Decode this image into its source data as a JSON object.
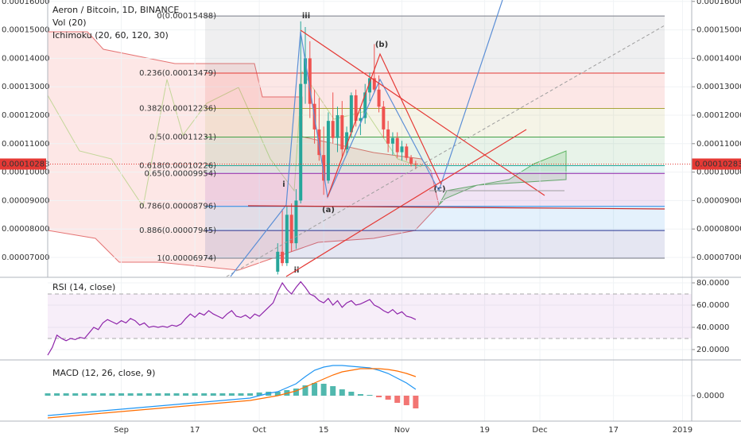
{
  "chart_data": [
    {
      "type": "candlestick",
      "title": "Aeron / Bitcoin, 1D, BINANCE",
      "indicators": [
        "Vol (20)",
        "Ichimoku (20, 60, 120, 30)"
      ],
      "x": [
        50,
        51,
        52,
        53,
        54,
        55,
        56,
        57,
        58,
        59,
        60,
        61,
        62,
        63,
        64,
        65,
        66,
        67,
        68,
        69,
        70,
        71,
        72,
        73,
        74,
        75,
        76,
        77,
        78,
        79,
        80
      ],
      "open": [
        6.5e-05,
        7.2e-05,
        6.8e-05,
        8.5e-05,
        7.5e-05,
        9e-05,
        0.000131,
        0.00014,
        0.000124,
        0.000115,
        0.000106,
        9.7e-05,
        0.000118,
        0.000112,
        0.00012,
        0.000108,
        0.000114,
        0.000127,
        0.000118,
        0.000119,
        0.000128,
        0.000133,
        0.000129,
        0.000123,
        0.000115,
        0.00011,
        0.000112,
        0.000107,
        0.000109,
        0.000105,
        0.000103
      ],
      "high": [
        7.5e-05,
        8.7e-05,
        8.8e-05,
        8.9e-05,
        9.4e-05,
        0.000153,
        0.000151,
        0.000146,
        0.000129,
        0.000126,
        0.000116,
        0.000121,
        0.000128,
        0.000123,
        0.000125,
        0.000116,
        0.000128,
        0.000129,
        0.000123,
        0.000131,
        0.000135,
        0.000145,
        0.000134,
        0.000125,
        0.000118,
        0.000114,
        0.000114,
        0.000111,
        0.00011,
        0.000106,
        0.000104
      ],
      "low": [
        6.4e-05,
        6.7e-05,
        6.7e-05,
        7.2e-05,
        7.3e-05,
        8.9e-05,
        0.000124,
        0.000119,
        0.00011,
        0.000104,
        9.2e-05,
        9.6e-05,
        0.00011,
        0.000107,
        0.000105,
        0.000106,
        0.000112,
        0.000116,
        0.000113,
        0.000117,
        0.000125,
        0.000128,
        0.000121,
        0.000112,
        0.000107,
        0.000106,
        0.000105,
        0.000104,
        0.000104,
        0.000102,
        0.000101
      ],
      "close": [
        7.2e-05,
        6.8e-05,
        8.5e-05,
        7.5e-05,
        9e-05,
        0.000131,
        0.00014,
        0.000124,
        0.000115,
        0.000106,
        9.7e-05,
        0.000118,
        0.000112,
        0.00012,
        0.000108,
        0.000114,
        0.000127,
        0.000118,
        0.000119,
        0.000128,
        0.000133,
        0.000129,
        0.000123,
        0.000115,
        0.00011,
        0.000112,
        0.000107,
        0.000109,
        0.000105,
        0.000103,
        0.00010283
      ],
      "up_color": "#26a69a",
      "down_color": "#ef5350",
      "xlim": [
        0,
        140
      ],
      "ylim": [
        6.33e-05,
        0.0001605
      ],
      "yticks": [
        {
          "value": 0.00016,
          "label": "0.00016000"
        },
        {
          "value": 0.00015,
          "label": "0.00015000"
        },
        {
          "value": 0.00014,
          "label": "0.00014000"
        },
        {
          "value": 0.00013,
          "label": "0.00013000"
        },
        {
          "value": 0.00012,
          "label": "0.00012000"
        },
        {
          "value": 0.00011,
          "label": "0.00011000"
        },
        {
          "value": 0.0001,
          "label": "0.00010000"
        },
        {
          "value": 9e-05,
          "label": "0.00009000"
        },
        {
          "value": 8e-05,
          "label": "0.00008000"
        },
        {
          "value": 7e-05,
          "label": "0.00007000"
        }
      ],
      "grid": true,
      "last_price": 0.00010283,
      "last_price_color": "#e53935",
      "fib_levels": [
        {
          "label": "0(0.00015488)",
          "value": 0.00015488,
          "color": "#787b86"
        },
        {
          "label": "0.236(0.00013479)",
          "value": 0.00013479,
          "color": "#e53935"
        },
        {
          "label": "0.382(0.00012236)",
          "value": 0.00012236,
          "color": "#a9a33a"
        },
        {
          "label": "0.5(0.00011231)",
          "value": 0.00011231,
          "color": "#43a047"
        },
        {
          "label": "0.618(0.00010226)",
          "value": 0.00010226,
          "color": "#26a69a"
        },
        {
          "label": "0.65(0.00009954)",
          "value": 9.954e-05,
          "color": "#8e24aa"
        },
        {
          "label": "0.786(0.00008796)",
          "value": 8.796e-05,
          "color": "#1e88e5"
        },
        {
          "label": "0.886(0.00007945)",
          "value": 7.945e-05,
          "color": "#283593"
        },
        {
          "label": "1(0.00006974)",
          "value": 6.974e-05,
          "color": "#787b86"
        }
      ],
      "annotations": [
        {
          "text": "iii",
          "color": "#3949ab"
        },
        {
          "text": "i",
          "color": "#3949ab"
        },
        {
          "text": "ii",
          "color": "#3949ab"
        },
        {
          "text": "(a)",
          "color": "#b71c1c"
        },
        {
          "text": "(b)",
          "color": "#b71c1c"
        },
        {
          "text": "(c)",
          "color": "#b71c1c"
        }
      ]
    },
    {
      "type": "line",
      "title": "RSI (14, close)",
      "x": [
        0,
        1,
        2,
        3,
        4,
        5,
        6,
        7,
        8,
        9,
        10,
        11,
        12,
        13,
        14,
        15,
        16,
        17,
        18,
        19,
        20,
        21,
        22,
        23,
        24,
        25,
        26,
        27,
        28,
        29,
        30,
        31,
        32,
        33,
        34,
        35,
        36,
        37,
        38,
        39,
        40,
        41,
        42,
        43,
        44,
        45,
        46,
        47,
        48,
        49,
        50,
        51,
        52,
        53,
        54,
        55,
        56,
        57,
        58,
        59,
        60,
        61,
        62,
        63,
        64,
        65,
        66,
        67,
        68,
        69,
        70,
        71,
        72,
        73,
        74,
        75,
        76,
        77,
        78,
        79,
        80
      ],
      "values": [
        15,
        22,
        33,
        30,
        28,
        30,
        29,
        31,
        30,
        35,
        40,
        38,
        44,
        47,
        45,
        43,
        46,
        44,
        48,
        46,
        42,
        44,
        40,
        41,
        40,
        41,
        40,
        42,
        41,
        43,
        48,
        52,
        49,
        53,
        51,
        55,
        52,
        50,
        48,
        52,
        55,
        50,
        49,
        51,
        48,
        52,
        50,
        54,
        58,
        62,
        72,
        80,
        74,
        70,
        76,
        81,
        76,
        70,
        68,
        64,
        62,
        66,
        60,
        64,
        58,
        62,
        64,
        60,
        61,
        63,
        65,
        60,
        58,
        55,
        53,
        56,
        52,
        54,
        50,
        49,
        47
      ],
      "color": "#8e24aa",
      "band": [
        30,
        70
      ],
      "band_color": "#9c27b0",
      "xlim": [
        0,
        140
      ],
      "ylim": [
        11.4,
        84.3
      ],
      "yticks": [
        {
          "value": 80,
          "label": "80.0000"
        },
        {
          "value": 60,
          "label": "60.0000"
        },
        {
          "value": 40,
          "label": "40.0000"
        },
        {
          "value": 20,
          "label": "20.0000"
        }
      ]
    },
    {
      "type": "macd",
      "title": "MACD (12, 26, close, 9)",
      "x": [
        0,
        2,
        4,
        6,
        8,
        10,
        12,
        14,
        16,
        18,
        20,
        22,
        24,
        26,
        28,
        30,
        32,
        34,
        36,
        38,
        40,
        42,
        44,
        46,
        48,
        50,
        52,
        54,
        56,
        58,
        60,
        62,
        64,
        66,
        68,
        70,
        72,
        74,
        76,
        78,
        80
      ],
      "series": [
        {
          "color": "#2196f3",
          "values": [
            -2.5e-06,
            -2.4e-06,
            -2.3e-06,
            -2.2e-06,
            -2.1e-06,
            -2e-06,
            -1.9e-06,
            -1.8e-06,
            -1.7e-06,
            -1.6e-06,
            -1.5e-06,
            -1.4e-06,
            -1.3e-06,
            -1.2e-06,
            -1.1e-06,
            -1e-06,
            -9e-07,
            -8e-07,
            -7e-07,
            -6e-07,
            -5e-07,
            -4e-07,
            -3e-07,
            0,
            3e-07,
            5e-07,
            1e-06,
            1.5e-06,
            2.4e-06,
            3.2e-06,
            3.6e-06,
            3.8e-06,
            3.8e-06,
            3.7e-06,
            3.6e-06,
            3.5e-06,
            3.2e-06,
            2.8e-06,
            2.2e-06,
            1.6e-06,
            8e-07
          ]
        },
        {
          "color": "#ff6d00",
          "values": [
            -2.8e-06,
            -2.7e-06,
            -2.6e-06,
            -2.5e-06,
            -2.4e-06,
            -2.3e-06,
            -2.2e-06,
            -2.1e-06,
            -2e-06,
            -1.9e-06,
            -1.8e-06,
            -1.7e-06,
            -1.6e-06,
            -1.5e-06,
            -1.4e-06,
            -1.3e-06,
            -1.2e-06,
            -1.1e-06,
            -1e-06,
            -9e-07,
            -8e-07,
            -7e-07,
            -6e-07,
            -4e-07,
            -2e-07,
            0,
            3e-07,
            6e-07,
            1.1e-06,
            1.6e-06,
            2.1e-06,
            2.6e-06,
            3e-06,
            3.2e-06,
            3.4e-06,
            3.4e-06,
            3.4e-06,
            3.3e-06,
            3.1e-06,
            2.8e-06,
            2.4e-06
          ]
        }
      ],
      "histogram": {
        "up_color": "#26a69a",
        "down_color": "#ef5350",
        "values": [
          3e-07,
          3e-07,
          3e-07,
          3e-07,
          3e-07,
          3e-07,
          3e-07,
          3e-07,
          3e-07,
          3e-07,
          3e-07,
          3e-07,
          3e-07,
          3e-07,
          3e-07,
          3e-07,
          3e-07,
          3e-07,
          3e-07,
          3e-07,
          3e-07,
          3e-07,
          3e-07,
          4e-07,
          5e-07,
          5e-07,
          7e-07,
          9e-07,
          1.3e-06,
          1.6e-06,
          1.5e-06,
          1.2e-06,
          8e-07,
          5e-07,
          2e-07,
          1e-07,
          -2e-07,
          -5e-07,
          -9e-07,
          -1.2e-06,
          -1.6e-06
        ]
      },
      "xlim": [
        0,
        140
      ],
      "ylim": [
        -3.2e-06,
        4.4e-06
      ],
      "yticks": [
        {
          "value": 0,
          "label": "0.0000"
        }
      ],
      "xticks": [
        {
          "value": 16,
          "label": "Sep"
        },
        {
          "value": 32,
          "label": "17"
        },
        {
          "value": 46,
          "label": "Oct"
        },
        {
          "value": 60,
          "label": "15"
        },
        {
          "value": 77,
          "label": "Nov"
        },
        {
          "value": 95,
          "label": "19"
        },
        {
          "value": 107,
          "label": "Dec"
        },
        {
          "value": 123,
          "label": "17"
        },
        {
          "value": 138,
          "label": "2019"
        }
      ]
    }
  ]
}
